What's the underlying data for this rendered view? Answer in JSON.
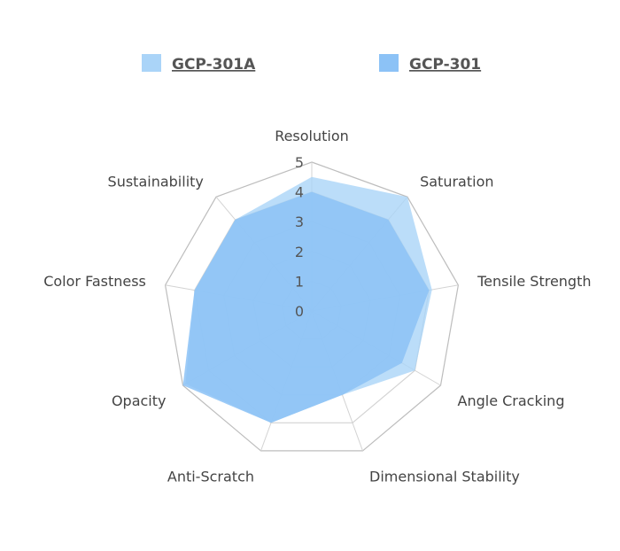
{
  "chart_data": {
    "type": "radar",
    "axes": [
      "Resolution",
      "Saturation",
      "Tensile Strength",
      "Angle Cracking",
      "Dimensional Stability",
      "Anti-Scratch",
      "Opacity",
      "Color Fastness",
      "Sustainability"
    ],
    "r_ticks": [
      "0",
      "1",
      "2",
      "3",
      "4",
      "5"
    ],
    "r_max": 5,
    "grid": true,
    "legend_position": "top",
    "series": [
      {
        "name": "GCP-301A",
        "values": [
          4.5,
          5.0,
          4.1,
          4.0,
          3.0,
          4.0,
          4.9,
          4.0,
          4.0
        ],
        "color": "#aad4f8"
      },
      {
        "name": "GCP-301",
        "values": [
          4.0,
          4.0,
          4.0,
          3.5,
          3.0,
          4.0,
          5.0,
          4.0,
          4.0
        ],
        "color": "#8cc2f6"
      }
    ]
  }
}
